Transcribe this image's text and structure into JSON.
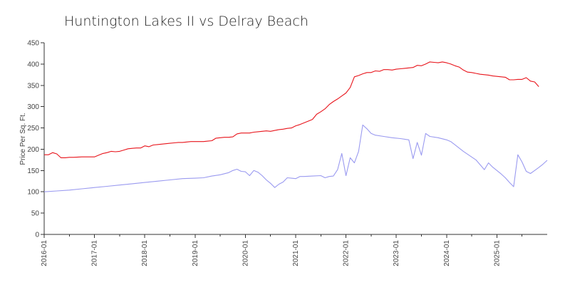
{
  "chart_data": {
    "type": "line",
    "title": "Huntington Lakes II vs Delray Beach",
    "xlabel": "",
    "ylabel": "Price Per Sq. Ft.",
    "ylim": [
      0,
      450
    ],
    "yticks": [
      0,
      50,
      100,
      150,
      200,
      250,
      300,
      350,
      400,
      450
    ],
    "xlim": [
      "2016-01",
      "2026-01"
    ],
    "xticks": [
      "2016-01",
      "2017-01",
      "2018-01",
      "2019-01",
      "2020-01",
      "2021-01",
      "2022-01",
      "2023-01",
      "2024-01",
      "2025-01"
    ],
    "grid": false,
    "legend": false,
    "series": [
      {
        "color": "#e8141b",
        "points": [
          [
            "2016-01",
            187
          ],
          [
            "2016-02",
            187
          ],
          [
            "2016-03",
            192
          ],
          [
            "2016-04",
            189
          ],
          [
            "2016-05",
            180
          ],
          [
            "2016-06",
            180
          ],
          [
            "2016-07",
            181
          ],
          [
            "2016-08",
            181
          ],
          [
            "2016-10",
            182
          ],
          [
            "2016-12",
            182
          ],
          [
            "2017-01",
            182
          ],
          [
            "2017-02",
            186
          ],
          [
            "2017-03",
            190
          ],
          [
            "2017-04",
            192
          ],
          [
            "2017-05",
            195
          ],
          [
            "2017-06",
            194
          ],
          [
            "2017-07",
            195
          ],
          [
            "2017-08",
            198
          ],
          [
            "2017-09",
            201
          ],
          [
            "2017-10",
            202
          ],
          [
            "2017-11",
            203
          ],
          [
            "2017-12",
            203
          ],
          [
            "2018-01",
            208
          ],
          [
            "2018-02",
            206
          ],
          [
            "2018-03",
            210
          ],
          [
            "2018-04",
            211
          ],
          [
            "2018-05",
            212
          ],
          [
            "2018-06",
            213
          ],
          [
            "2018-07",
            214
          ],
          [
            "2018-08",
            215
          ],
          [
            "2018-09",
            216
          ],
          [
            "2018-10",
            216
          ],
          [
            "2018-11",
            217
          ],
          [
            "2018-12",
            218
          ],
          [
            "2019-01",
            218
          ],
          [
            "2019-03",
            218
          ],
          [
            "2019-04",
            219
          ],
          [
            "2019-05",
            220
          ],
          [
            "2019-06",
            226
          ],
          [
            "2019-07",
            227
          ],
          [
            "2019-08",
            228
          ],
          [
            "2019-09",
            228
          ],
          [
            "2019-10",
            229
          ],
          [
            "2019-11",
            236
          ],
          [
            "2019-12",
            238
          ],
          [
            "2020-01",
            238
          ],
          [
            "2020-02",
            238
          ],
          [
            "2020-03",
            240
          ],
          [
            "2020-04",
            241
          ],
          [
            "2020-05",
            242
          ],
          [
            "2020-06",
            243
          ],
          [
            "2020-07",
            242
          ],
          [
            "2020-08",
            244
          ],
          [
            "2020-09",
            246
          ],
          [
            "2020-10",
            247
          ],
          [
            "2020-11",
            249
          ],
          [
            "2020-12",
            250
          ],
          [
            "2021-01",
            255
          ],
          [
            "2021-02",
            258
          ],
          [
            "2021-03",
            262
          ],
          [
            "2021-04",
            266
          ],
          [
            "2021-05",
            270
          ],
          [
            "2021-06",
            282
          ],
          [
            "2021-07",
            288
          ],
          [
            "2021-08",
            295
          ],
          [
            "2021-09",
            305
          ],
          [
            "2021-10",
            312
          ],
          [
            "2021-11",
            318
          ],
          [
            "2021-12",
            325
          ],
          [
            "2022-01",
            332
          ],
          [
            "2022-02",
            345
          ],
          [
            "2022-03",
            370
          ],
          [
            "2022-04",
            373
          ],
          [
            "2022-05",
            377
          ],
          [
            "2022-06",
            380
          ],
          [
            "2022-07",
            380
          ],
          [
            "2022-08",
            384
          ],
          [
            "2022-09",
            383
          ],
          [
            "2022-10",
            387
          ],
          [
            "2022-11",
            387
          ],
          [
            "2022-12",
            386
          ],
          [
            "2023-01",
            388
          ],
          [
            "2023-02",
            389
          ],
          [
            "2023-03",
            390
          ],
          [
            "2023-04",
            391
          ],
          [
            "2023-05",
            392
          ],
          [
            "2023-06",
            397
          ],
          [
            "2023-07",
            396
          ],
          [
            "2023-08",
            400
          ],
          [
            "2023-09",
            405
          ],
          [
            "2023-10",
            404
          ],
          [
            "2023-11",
            403
          ],
          [
            "2023-12",
            405
          ],
          [
            "2024-01",
            403
          ],
          [
            "2024-02",
            400
          ],
          [
            "2024-03",
            396
          ],
          [
            "2024-04",
            393
          ],
          [
            "2024-05",
            386
          ],
          [
            "2024-06",
            381
          ],
          [
            "2024-07",
            380
          ],
          [
            "2024-08",
            378
          ],
          [
            "2024-09",
            376
          ],
          [
            "2024-10",
            375
          ],
          [
            "2024-11",
            374
          ],
          [
            "2024-12",
            372
          ],
          [
            "2025-01",
            371
          ],
          [
            "2025-02",
            370
          ],
          [
            "2025-03",
            369
          ],
          [
            "2025-04",
            363
          ],
          [
            "2025-05",
            363
          ],
          [
            "2025-06",
            364
          ],
          [
            "2025-07",
            364
          ],
          [
            "2025-08",
            368
          ],
          [
            "2025-09",
            360
          ],
          [
            "2025-10",
            358
          ],
          [
            "2025-11",
            347
          ]
        ]
      },
      {
        "color": "#9a9af0",
        "points": [
          [
            "2016-01",
            100
          ],
          [
            "2016-04",
            102
          ],
          [
            "2016-07",
            104
          ],
          [
            "2016-10",
            107
          ],
          [
            "2017-01",
            110
          ],
          [
            "2017-04",
            113
          ],
          [
            "2017-07",
            116
          ],
          [
            "2017-10",
            119
          ],
          [
            "2018-01",
            122
          ],
          [
            "2018-04",
            125
          ],
          [
            "2018-07",
            128
          ],
          [
            "2018-10",
            131
          ],
          [
            "2019-01",
            132
          ],
          [
            "2019-03",
            133
          ],
          [
            "2019-05",
            137
          ],
          [
            "2019-07",
            140
          ],
          [
            "2019-09",
            145
          ],
          [
            "2019-10",
            150
          ],
          [
            "2019-11",
            153
          ],
          [
            "2019-12",
            148
          ],
          [
            "2020-01",
            147
          ],
          [
            "2020-02",
            138
          ],
          [
            "2020-03",
            150
          ],
          [
            "2020-04",
            146
          ],
          [
            "2020-05",
            138
          ],
          [
            "2020-06",
            128
          ],
          [
            "2020-07",
            120
          ],
          [
            "2020-08",
            110
          ],
          [
            "2020-09",
            118
          ],
          [
            "2020-10",
            123
          ],
          [
            "2020-11",
            133
          ],
          [
            "2020-12",
            132
          ],
          [
            "2021-01",
            131
          ],
          [
            "2021-02",
            136
          ],
          [
            "2021-03",
            136
          ],
          [
            "2021-05",
            137
          ],
          [
            "2021-07",
            138
          ],
          [
            "2021-08",
            133
          ],
          [
            "2021-09",
            136
          ],
          [
            "2021-10",
            137
          ],
          [
            "2021-11",
            152
          ],
          [
            "2021-12",
            190
          ],
          [
            "2022-01",
            138
          ],
          [
            "2022-02",
            180
          ],
          [
            "2022-03",
            168
          ],
          [
            "2022-04",
            195
          ],
          [
            "2022-05",
            257
          ],
          [
            "2022-06",
            248
          ],
          [
            "2022-07",
            237
          ],
          [
            "2022-08",
            233
          ],
          [
            "2022-10",
            230
          ],
          [
            "2022-12",
            227
          ],
          [
            "2023-02",
            225
          ],
          [
            "2023-04",
            222
          ],
          [
            "2023-05",
            178
          ],
          [
            "2023-06",
            216
          ],
          [
            "2023-07",
            186
          ],
          [
            "2023-08",
            237
          ],
          [
            "2023-09",
            230
          ],
          [
            "2023-11",
            227
          ],
          [
            "2024-01",
            222
          ],
          [
            "2024-02",
            218
          ],
          [
            "2024-05",
            195
          ],
          [
            "2024-08",
            175
          ],
          [
            "2024-10",
            152
          ],
          [
            "2024-11",
            168
          ],
          [
            "2024-12",
            158
          ],
          [
            "2025-02",
            142
          ],
          [
            "2025-03",
            133
          ],
          [
            "2025-04",
            122
          ],
          [
            "2025-05",
            112
          ],
          [
            "2025-06",
            187
          ],
          [
            "2025-07",
            170
          ],
          [
            "2025-08",
            148
          ],
          [
            "2025-09",
            143
          ],
          [
            "2025-10",
            150
          ],
          [
            "2025-11",
            157
          ],
          [
            "2025-12",
            165
          ],
          [
            "2026-01",
            174
          ]
        ]
      }
    ]
  }
}
